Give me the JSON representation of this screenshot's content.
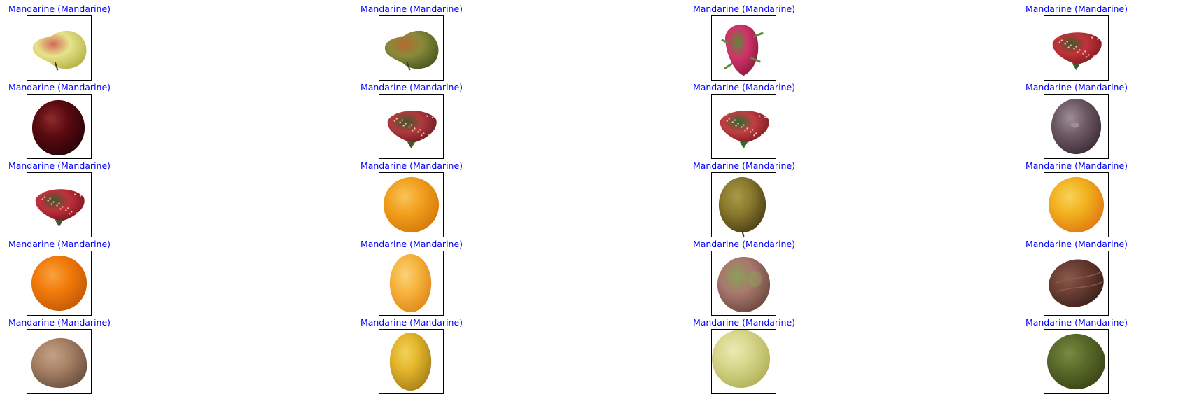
{
  "figure": {
    "label_color": "#0000ff",
    "cells": [
      {
        "title": "Mandarine (Mandarine)",
        "fruit": "pear-icon",
        "colors": [
          "#e6e38a",
          "#b8b54a",
          "#d46a5a"
        ]
      },
      {
        "title": "Mandarine (Mandarine)",
        "fruit": "pear-icon",
        "colors": [
          "#8a8a3a",
          "#4e5a22",
          "#b46a2e"
        ]
      },
      {
        "title": "Mandarine (Mandarine)",
        "fruit": "dragonfruit-icon",
        "colors": [
          "#d2326a",
          "#8e1a3e",
          "#5a8a3a"
        ]
      },
      {
        "title": "Mandarine (Mandarine)",
        "fruit": "strawberry-icon",
        "colors": [
          "#c2323a",
          "#7e1a22",
          "#3e5a2a"
        ]
      },
      {
        "title": "Mandarine (Mandarine)",
        "fruit": "cherry-icon",
        "colors": [
          "#5a0a10",
          "#2a0408",
          "#8a2a2a"
        ]
      },
      {
        "title": "Mandarine (Mandarine)",
        "fruit": "strawberry-icon",
        "colors": [
          "#b03a3e",
          "#6e1a22",
          "#3e5a2a"
        ]
      },
      {
        "title": "Mandarine (Mandarine)",
        "fruit": "strawberry-icon",
        "colors": [
          "#c23e40",
          "#7a1a24",
          "#2e6a32"
        ]
      },
      {
        "title": "Mandarine (Mandarine)",
        "fruit": "plum-icon",
        "colors": [
          "#6e5a64",
          "#3e2e38",
          "#9e8e96"
        ]
      },
      {
        "title": "Mandarine (Mandarine)",
        "fruit": "strawberry-icon",
        "colors": [
          "#c0303c",
          "#7a1420",
          "#3e5a2a"
        ]
      },
      {
        "title": "Mandarine (Mandarine)",
        "fruit": "orange-icon",
        "colors": [
          "#f2a01e",
          "#d67a0a",
          "#f7c458"
        ]
      },
      {
        "title": "Mandarine (Mandarine)",
        "fruit": "kiwi-icon",
        "colors": [
          "#8a7a2e",
          "#4e4216",
          "#a89a46"
        ]
      },
      {
        "title": "Mandarine (Mandarine)",
        "fruit": "apricot-icon",
        "colors": [
          "#f2b21e",
          "#e07a12",
          "#f7d25a"
        ]
      },
      {
        "title": "Mandarine (Mandarine)",
        "fruit": "orange-icon",
        "colors": [
          "#f27a0a",
          "#c45a06",
          "#f7a23e"
        ]
      },
      {
        "title": "Mandarine (Mandarine)",
        "fruit": "lemon-icon",
        "colors": [
          "#f7b43e",
          "#e08a1a",
          "#fad27a"
        ]
      },
      {
        "title": "Mandarine (Mandarine)",
        "fruit": "pomegranate-icon",
        "colors": [
          "#a8786e",
          "#6e4a3e",
          "#8aa05a"
        ]
      },
      {
        "title": "Mandarine (Mandarine)",
        "fruit": "coconut-icon",
        "colors": [
          "#6a3e34",
          "#3e221a",
          "#8a5a4a"
        ]
      },
      {
        "title": "Mandarine (Mandarine)",
        "fruit": "potato-icon",
        "colors": [
          "#a88266",
          "#6e5240",
          "#c2a286"
        ]
      },
      {
        "title": "Mandarine (Mandarine)",
        "fruit": "lemon-icon",
        "colors": [
          "#e2b42a",
          "#a8821a",
          "#f2d25a"
        ]
      },
      {
        "title": "Mandarine (Mandarine)",
        "fruit": "grape-icon",
        "colors": [
          "#d6d68a",
          "#b2b25a",
          "#eaeab6"
        ]
      },
      {
        "title": "Mandarine (Mandarine)",
        "fruit": "lime-icon",
        "colors": [
          "#5a6a2a",
          "#3a4616",
          "#7a8a42"
        ]
      }
    ]
  }
}
